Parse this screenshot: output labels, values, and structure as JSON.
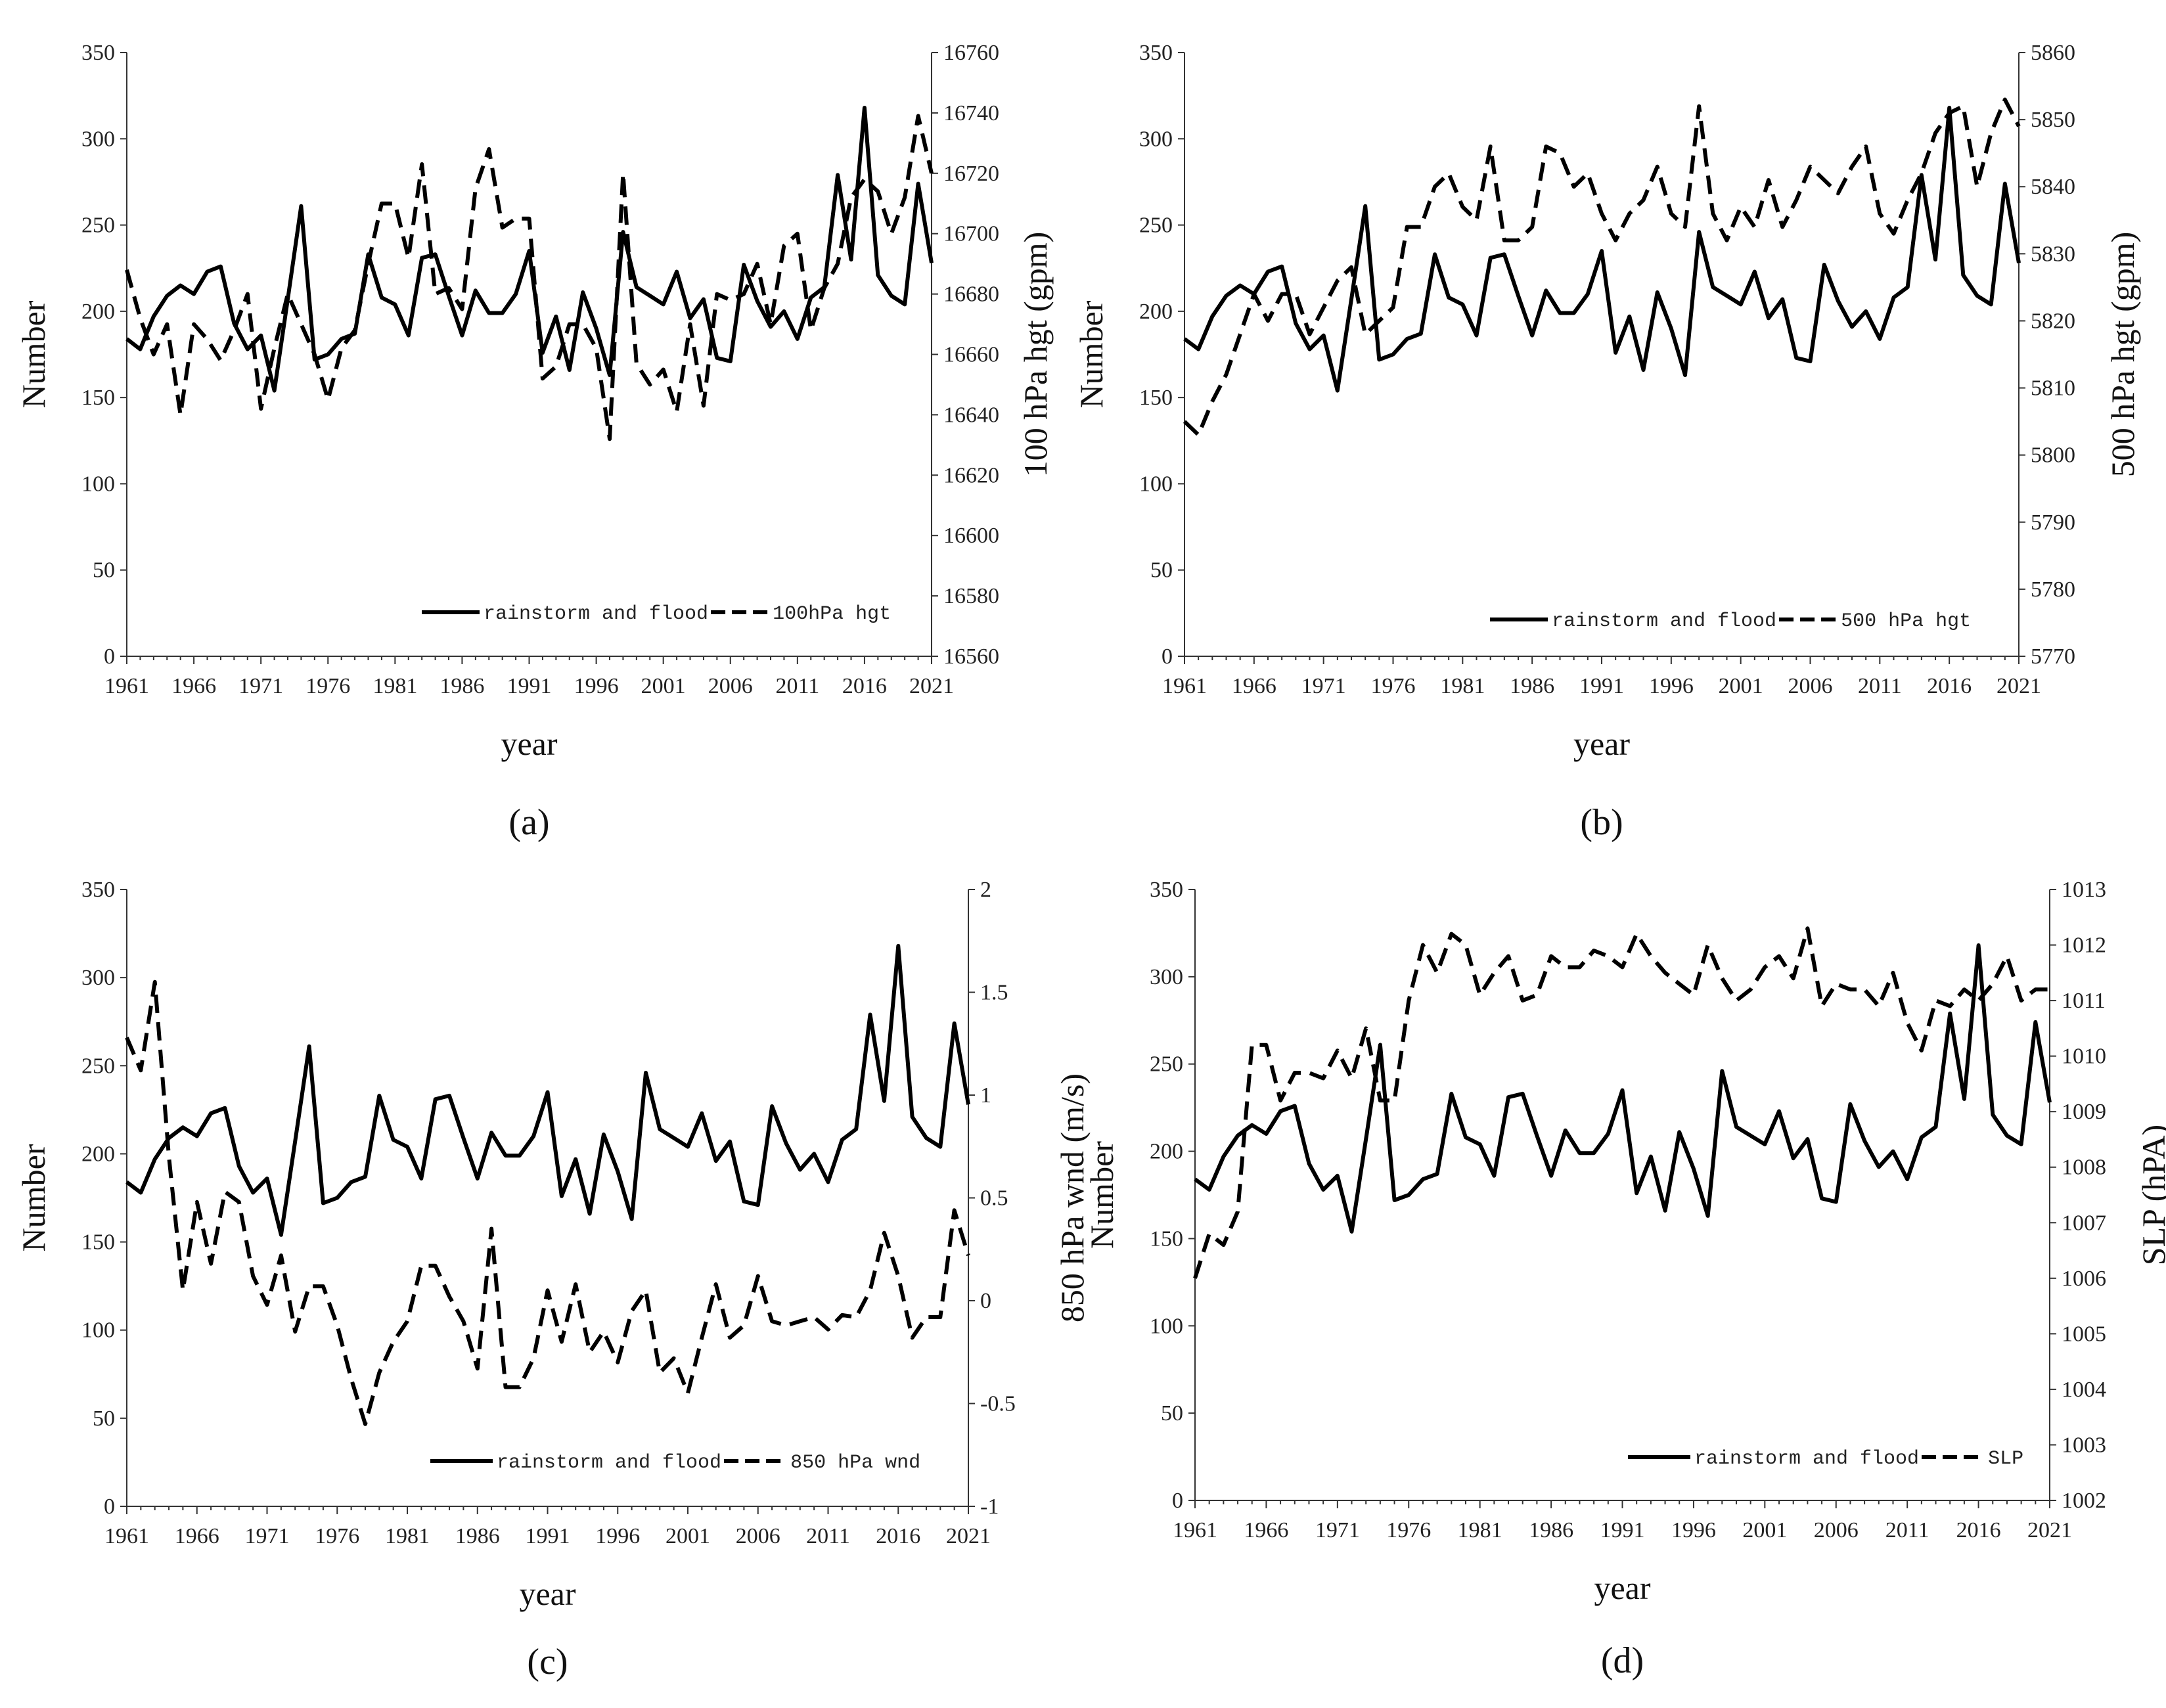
{
  "figure": {
    "year_start": 1961,
    "year_end": 2021,
    "rainstorm_and_flood": [
      184,
      178,
      197,
      209,
      215,
      210,
      223,
      226,
      193,
      178,
      186,
      154,
      207,
      261,
      172,
      175,
      184,
      187,
      233,
      208,
      204,
      186,
      231,
      233,
      209,
      186,
      212,
      199,
      199,
      210,
      235,
      176,
      197,
      166,
      211,
      190,
      163,
      246,
      214,
      209,
      204,
      223,
      196,
      207,
      173,
      171,
      227,
      206,
      191,
      200,
      184,
      208,
      214,
      279,
      230,
      318,
      221,
      209,
      204,
      274,
      228
    ],
    "xticks": [
      "1961",
      "1966",
      "1971",
      "1976",
      "1981",
      "1986",
      "1991",
      "1996",
      "2001",
      "2006",
      "2011",
      "2016",
      "2021"
    ],
    "left_ticks": [
      "0",
      "50",
      "100",
      "150",
      "200",
      "250",
      "300",
      "350"
    ]
  },
  "chart_data": [
    {
      "id": "a",
      "type": "line",
      "panel_label": "(a)",
      "xlabel": "year",
      "ylabel_left": "Number",
      "ylabel_right": "100 hPa hgt (gpm)",
      "ylim_left": [
        0,
        350
      ],
      "ylim_right": [
        16560,
        16760
      ],
      "right_ticks": [
        "16560",
        "16580",
        "16600",
        "16620",
        "16640",
        "16660",
        "16680",
        "16700",
        "16720",
        "16740",
        "16760"
      ],
      "legend": [
        "rainstorm and flood",
        "100hPa hgt"
      ],
      "series": [
        {
          "name": "rainstorm and flood",
          "axis": "left",
          "style": "solid"
        },
        {
          "name": "100hPa hgt",
          "axis": "right",
          "style": "dashed",
          "values": [
            16688,
            16672,
            16660,
            16670,
            16640,
            16670,
            16665,
            16658,
            16668,
            16680,
            16642,
            16662,
            16680,
            16670,
            16660,
            16645,
            16662,
            16668,
            16690,
            16710,
            16710,
            16692,
            16723,
            16680,
            16682,
            16675,
            16715,
            16728,
            16702,
            16705,
            16705,
            16652,
            16656,
            16670,
            16670,
            16662,
            16632,
            16720,
            16657,
            16650,
            16655,
            16641,
            16670,
            16643,
            16680,
            16678,
            16680,
            16690,
            16670,
            16696,
            16700,
            16668,
            16682,
            16690,
            16712,
            16718,
            16714,
            16700,
            16712,
            16739,
            16720
          ]
        }
      ]
    },
    {
      "id": "b",
      "type": "line",
      "panel_label": "(b)",
      "xlabel": "year",
      "ylabel_left": "Number",
      "ylabel_right": "500 hPa hgt (gpm)",
      "ylim_left": [
        0,
        350
      ],
      "ylim_right": [
        5770,
        5860
      ],
      "right_ticks": [
        "5770",
        "5780",
        "5790",
        "5800",
        "5810",
        "5820",
        "5830",
        "5840",
        "5850",
        "5860"
      ],
      "legend": [
        "rainstorm and flood",
        "500 hPa hgt"
      ],
      "series": [
        {
          "name": "rainstorm and flood",
          "axis": "left",
          "style": "solid"
        },
        {
          "name": "500 hPa hgt",
          "axis": "right",
          "style": "dashed",
          "values": [
            5805,
            5803,
            5808,
            5812,
            5818,
            5824,
            5820,
            5824,
            5824,
            5818,
            5822,
            5826,
            5828,
            5818,
            5820,
            5822,
            5834,
            5834,
            5840,
            5842,
            5837,
            5835,
            5846,
            5832,
            5832,
            5834,
            5846,
            5845,
            5840,
            5842,
            5836,
            5832,
            5836,
            5838,
            5843,
            5836,
            5834,
            5852,
            5836,
            5832,
            5837,
            5834,
            5841,
            5834,
            5838,
            5843,
            5841,
            5839,
            5843,
            5846,
            5836,
            5833,
            5838,
            5842,
            5848,
            5851,
            5852,
            5840,
            5848,
            5853,
            5849
          ]
        }
      ]
    },
    {
      "id": "c",
      "type": "line",
      "panel_label": "(c)",
      "xlabel": "year",
      "ylabel_left": "Number",
      "ylabel_right": "850 hPa wnd (m/s)",
      "ylim_left": [
        0,
        350
      ],
      "ylim_right": [
        -1,
        2
      ],
      "right_ticks": [
        "-1",
        "-0.5",
        "0",
        "0.5",
        "1",
        "1.5",
        "2"
      ],
      "legend": [
        "rainstorm and flood",
        "850 hPa wnd"
      ],
      "series": [
        {
          "name": "rainstorm and flood",
          "axis": "left",
          "style": "solid"
        },
        {
          "name": "850 hPa wnd",
          "axis": "right",
          "style": "dashed",
          "values": [
            1.28,
            1.12,
            1.55,
            0.7,
            0.05,
            0.48,
            0.18,
            0.53,
            0.48,
            0.12,
            -0.02,
            0.22,
            -0.15,
            0.07,
            0.07,
            -0.12,
            -0.38,
            -0.6,
            -0.35,
            -0.2,
            -0.1,
            0.17,
            0.17,
            0.02,
            -0.1,
            -0.33,
            0.35,
            -0.42,
            -0.42,
            -0.28,
            0.05,
            -0.2,
            0.08,
            -0.25,
            -0.15,
            -0.3,
            -0.05,
            0.05,
            -0.35,
            -0.28,
            -0.45,
            -0.18,
            0.08,
            -0.18,
            -0.12,
            0.12,
            -0.1,
            -0.12,
            -0.1,
            -0.08,
            -0.14,
            -0.07,
            -0.08,
            0.05,
            0.33,
            0.12,
            -0.18,
            -0.08,
            -0.08,
            0.44,
            0.22
          ]
        }
      ]
    },
    {
      "id": "d",
      "type": "line",
      "panel_label": "(d)",
      "xlabel": "year",
      "ylabel_left": "Number",
      "ylabel_right": "SLP (hPA)",
      "ylim_left": [
        0,
        350
      ],
      "ylim_right": [
        1002,
        1013
      ],
      "right_ticks": [
        "1002",
        "1003",
        "1004",
        "1005",
        "1006",
        "1007",
        "1008",
        "1009",
        "1010",
        "1011",
        "1012",
        "1013"
      ],
      "legend": [
        "rainstorm and flood",
        "SLP"
      ],
      "series": [
        {
          "name": "rainstorm and flood",
          "axis": "left",
          "style": "solid"
        },
        {
          "name": "SLP",
          "axis": "right",
          "style": "dashed",
          "values": [
            1006,
            1006.8,
            1006.6,
            1007.2,
            1010.2,
            1010.2,
            1009.2,
            1009.7,
            1009.7,
            1009.6,
            1010.1,
            1009.6,
            1010.5,
            1009.2,
            1009.2,
            1011,
            1012,
            1011.5,
            1012.2,
            1012,
            1011.1,
            1011.5,
            1011.8,
            1011,
            1011.1,
            1011.8,
            1011.6,
            1011.6,
            1011.9,
            1011.8,
            1011.6,
            1012.2,
            1011.8,
            1011.5,
            1011.3,
            1011.1,
            1012,
            1011.4,
            1011,
            1011.2,
            1011.6,
            1011.8,
            1011.4,
            1012.3,
            1010.9,
            1011.3,
            1011.2,
            1011.2,
            1010.9,
            1011.5,
            1010.6,
            1010.1,
            1011,
            1010.9,
            1011.2,
            1011,
            1011.3,
            1011.8,
            1011,
            1011.2,
            1011.2
          ]
        }
      ]
    }
  ]
}
